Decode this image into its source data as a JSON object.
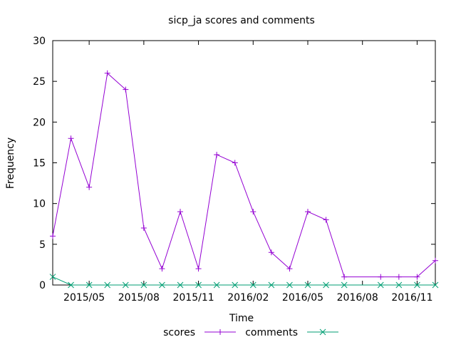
{
  "chart_data": {
    "type": "line",
    "title": "sicp_ja scores and comments",
    "xlabel": "Time",
    "ylabel": "Frequency",
    "ylim": [
      0,
      30
    ],
    "yticks": [
      0,
      5,
      10,
      15,
      20,
      25,
      30
    ],
    "xlim": [
      "2015-03",
      "2016-12"
    ],
    "xticks": [
      "2015/05",
      "2015/08",
      "2015/11",
      "2016/02",
      "2016/05",
      "2016/08",
      "2016/11"
    ],
    "grid": false,
    "legend": "bottom-center",
    "x": [
      "2015-03",
      "2015-04",
      "2015-05",
      "2015-06",
      "2015-07",
      "2015-08",
      "2015-09",
      "2015-10",
      "2015-11",
      "2015-12",
      "2016-01",
      "2016-02",
      "2016-03",
      "2016-04",
      "2016-05",
      "2016-06",
      "2016-07",
      "2016-09",
      "2016-10",
      "2016-11",
      "2016-12"
    ],
    "series": [
      {
        "name": "scores",
        "color": "#9400d3",
        "marker": "plus",
        "values": [
          6,
          18,
          12,
          26,
          24,
          7,
          2,
          9,
          2,
          16,
          15,
          9,
          4,
          2,
          9,
          8,
          1,
          1,
          1,
          1,
          3
        ]
      },
      {
        "name": "comments",
        "color": "#009e73",
        "marker": "cross",
        "values": [
          1,
          0,
          0,
          0,
          0,
          0,
          0,
          0,
          0,
          0,
          0,
          0,
          0,
          0,
          0,
          0,
          0,
          0,
          0,
          0,
          0
        ]
      }
    ]
  }
}
